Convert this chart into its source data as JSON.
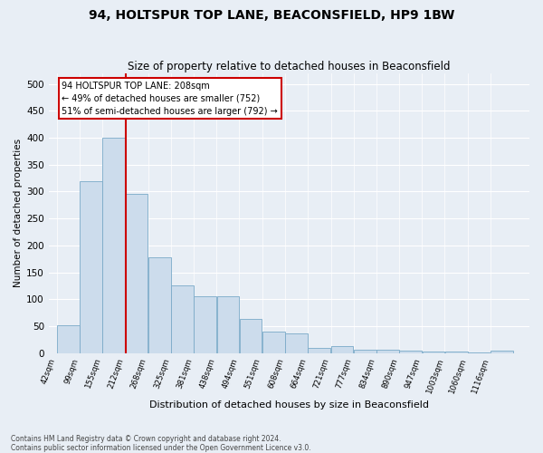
{
  "title": "94, HOLTSPUR TOP LANE, BEACONSFIELD, HP9 1BW",
  "subtitle": "Size of property relative to detached houses in Beaconsfield",
  "xlabel": "Distribution of detached houses by size in Beaconsfield",
  "ylabel": "Number of detached properties",
  "footer_line1": "Contains HM Land Registry data © Crown copyright and database right 2024.",
  "footer_line2": "Contains public sector information licensed under the Open Government Licence v3.0.",
  "annotation_line1": "94 HOLTSPUR TOP LANE: 208sqm",
  "annotation_line2": "← 49% of detached houses are smaller (752)",
  "annotation_line3": "51% of semi-detached houses are larger (792) →",
  "bin_edges": [
    42,
    99,
    155,
    212,
    268,
    325,
    381,
    438,
    494,
    551,
    608,
    664,
    721,
    777,
    834,
    890,
    947,
    1003,
    1060,
    1116,
    1173
  ],
  "bar_values": [
    52,
    320,
    400,
    295,
    178,
    125,
    105,
    105,
    63,
    40,
    36,
    10,
    13,
    7,
    7,
    5,
    2,
    2,
    1,
    5
  ],
  "bar_color": "#ccdcec",
  "bar_edge_color": "#7aaac8",
  "vline_x": 212,
  "vline_color": "#cc0000",
  "annotation_box_edge": "#cc0000",
  "ylim": [
    0,
    520
  ],
  "yticks": [
    0,
    50,
    100,
    150,
    200,
    250,
    300,
    350,
    400,
    450,
    500
  ],
  "bg_color": "#e8eef5",
  "grid_color": "#ffffff",
  "title_fontsize": 10,
  "subtitle_fontsize": 8.5,
  "xlabel_fontsize": 8,
  "ylabel_fontsize": 7.5,
  "footer_fontsize": 5.5
}
